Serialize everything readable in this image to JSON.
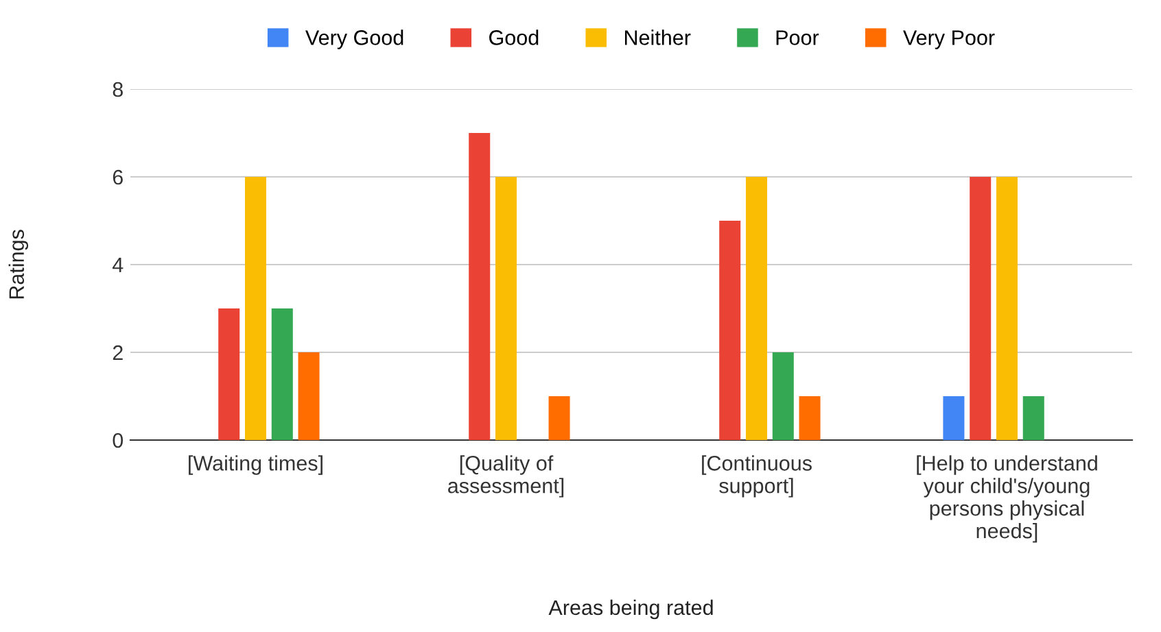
{
  "chart_data": {
    "type": "bar",
    "xlabel": "Areas being rated",
    "ylabel": "Ratings",
    "categories": [
      "[Waiting times]",
      "[Quality of\nassessment]",
      "[Continuous\nsupport]",
      "[Help to understand\nyour child's/young\npersons physical\nneeds]"
    ],
    "series": [
      {
        "name": "Very Good",
        "color": "#4285f4",
        "values": [
          0,
          0,
          0,
          1
        ]
      },
      {
        "name": "Good",
        "color": "#ea4335",
        "values": [
          3,
          7,
          5,
          6
        ]
      },
      {
        "name": "Neither",
        "color": "#fbbc04",
        "values": [
          6,
          6,
          6,
          6
        ]
      },
      {
        "name": "Poor",
        "color": "#34a853",
        "values": [
          3,
          0,
          2,
          1
        ]
      },
      {
        "name": "Very Poor",
        "color": "#ff6d01",
        "values": [
          2,
          1,
          1,
          0
        ]
      }
    ],
    "ylim": [
      0,
      8
    ],
    "yticks": [
      0,
      2,
      4,
      6,
      8
    ],
    "grid": "y",
    "legend": "top"
  }
}
